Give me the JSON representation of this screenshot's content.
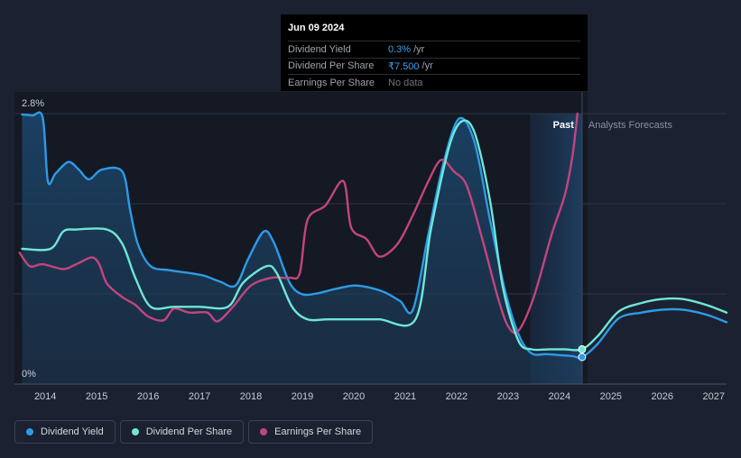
{
  "tooltip": {
    "date": "Jun 09 2024",
    "rows": [
      {
        "label": "Dividend Yield",
        "value": "0.3%",
        "unit": "/yr"
      },
      {
        "label": "Dividend Per Share",
        "value": "₹7.500",
        "unit": "/yr"
      },
      {
        "label": "Earnings Per Share",
        "value": "No data"
      }
    ]
  },
  "regions": {
    "past": "Past",
    "forecast": "Analysts Forecasts"
  },
  "legend": [
    {
      "label": "Dividend Yield",
      "color": "#2c9be6"
    },
    {
      "label": "Dividend Per Share",
      "color": "#6fe6d6"
    },
    {
      "label": "Earnings Per Share",
      "color": "#c2457d"
    }
  ],
  "chart_data": {
    "type": "line",
    "title": "",
    "xlabel": "",
    "ylabel": "",
    "y_tick_labels": [
      "2.8%",
      "0%"
    ],
    "ylim": [
      0,
      2.8
    ],
    "xlim": [
      2013.4,
      2027.25
    ],
    "x_ticks": [
      2014,
      2015,
      2016,
      2017,
      2018,
      2019,
      2020,
      2021,
      2022,
      2023,
      2024,
      2025,
      2026,
      2027
    ],
    "past_end": 2024.44,
    "forecast_band_start": 2023.43,
    "highlight_x": 2024.44,
    "grid": true,
    "legend_position": "bottom-left",
    "series": [
      {
        "name": "Dividend Yield",
        "color": "#2c9be6",
        "area": true,
        "points": [
          [
            2013.55,
            2.79
          ],
          [
            2013.75,
            2.78
          ],
          [
            2013.95,
            2.76
          ],
          [
            2014.05,
            2.1
          ],
          [
            2014.2,
            2.18
          ],
          [
            2014.45,
            2.3
          ],
          [
            2014.65,
            2.22
          ],
          [
            2014.85,
            2.12
          ],
          [
            2015.1,
            2.22
          ],
          [
            2015.5,
            2.2
          ],
          [
            2015.65,
            1.8
          ],
          [
            2015.8,
            1.45
          ],
          [
            2016.05,
            1.22
          ],
          [
            2016.4,
            1.18
          ],
          [
            2016.8,
            1.15
          ],
          [
            2017.1,
            1.12
          ],
          [
            2017.4,
            1.06
          ],
          [
            2017.7,
            1.02
          ],
          [
            2017.95,
            1.3
          ],
          [
            2018.25,
            1.58
          ],
          [
            2018.45,
            1.46
          ],
          [
            2018.75,
            1.05
          ],
          [
            2019.0,
            0.93
          ],
          [
            2019.3,
            0.94
          ],
          [
            2019.6,
            0.98
          ],
          [
            2020.0,
            1.02
          ],
          [
            2020.3,
            1.0
          ],
          [
            2020.6,
            0.95
          ],
          [
            2020.9,
            0.86
          ],
          [
            2021.15,
            0.77
          ],
          [
            2021.45,
            1.55
          ],
          [
            2021.75,
            2.3
          ],
          [
            2022.05,
            2.75
          ],
          [
            2022.35,
            2.5
          ],
          [
            2022.65,
            1.7
          ],
          [
            2022.95,
            0.95
          ],
          [
            2023.2,
            0.52
          ],
          [
            2023.45,
            0.32
          ],
          [
            2023.75,
            0.31
          ],
          [
            2024.0,
            0.3
          ],
          [
            2024.25,
            0.29
          ],
          [
            2024.44,
            0.28
          ],
          [
            2024.75,
            0.42
          ],
          [
            2025.15,
            0.68
          ],
          [
            2025.6,
            0.74
          ],
          [
            2026.0,
            0.77
          ],
          [
            2026.4,
            0.77
          ],
          [
            2026.85,
            0.72
          ],
          [
            2027.25,
            0.64
          ]
        ]
      },
      {
        "name": "Dividend Per Share",
        "color": "#6fe6d6",
        "area": false,
        "points": [
          [
            2013.55,
            1.4
          ],
          [
            2014.1,
            1.4
          ],
          [
            2014.35,
            1.58
          ],
          [
            2014.6,
            1.6
          ],
          [
            2015.2,
            1.6
          ],
          [
            2015.5,
            1.45
          ],
          [
            2015.75,
            1.1
          ],
          [
            2016.05,
            0.8
          ],
          [
            2016.5,
            0.8
          ],
          [
            2017.0,
            0.8
          ],
          [
            2017.55,
            0.8
          ],
          [
            2017.85,
            1.05
          ],
          [
            2018.3,
            1.22
          ],
          [
            2018.5,
            1.15
          ],
          [
            2018.8,
            0.8
          ],
          [
            2019.1,
            0.67
          ],
          [
            2019.5,
            0.67
          ],
          [
            2020.0,
            0.67
          ],
          [
            2020.5,
            0.67
          ],
          [
            2021.2,
            0.67
          ],
          [
            2021.5,
            1.6
          ],
          [
            2021.85,
            2.45
          ],
          [
            2022.1,
            2.72
          ],
          [
            2022.35,
            2.6
          ],
          [
            2022.65,
            1.9
          ],
          [
            2022.9,
            1.0
          ],
          [
            2023.2,
            0.45
          ],
          [
            2023.45,
            0.36
          ],
          [
            2023.8,
            0.36
          ],
          [
            2024.1,
            0.36
          ],
          [
            2024.44,
            0.36
          ],
          [
            2024.75,
            0.5
          ],
          [
            2025.15,
            0.75
          ],
          [
            2025.6,
            0.84
          ],
          [
            2026.0,
            0.88
          ],
          [
            2026.4,
            0.88
          ],
          [
            2026.85,
            0.82
          ],
          [
            2027.25,
            0.74
          ]
        ]
      },
      {
        "name": "Earnings Per Share",
        "color": "#c2457d",
        "area": false,
        "points": [
          [
            2013.5,
            1.36
          ],
          [
            2013.7,
            1.22
          ],
          [
            2013.95,
            1.24
          ],
          [
            2014.35,
            1.19
          ],
          [
            2014.6,
            1.24
          ],
          [
            2014.9,
            1.31
          ],
          [
            2015.05,
            1.24
          ],
          [
            2015.2,
            1.04
          ],
          [
            2015.5,
            0.9
          ],
          [
            2015.75,
            0.82
          ],
          [
            2016.0,
            0.7
          ],
          [
            2016.3,
            0.66
          ],
          [
            2016.5,
            0.78
          ],
          [
            2016.8,
            0.74
          ],
          [
            2017.15,
            0.74
          ],
          [
            2017.35,
            0.65
          ],
          [
            2017.65,
            0.8
          ],
          [
            2018.0,
            1.02
          ],
          [
            2018.4,
            1.1
          ],
          [
            2018.75,
            1.1
          ],
          [
            2018.95,
            1.15
          ],
          [
            2019.1,
            1.7
          ],
          [
            2019.45,
            1.85
          ],
          [
            2019.8,
            2.1
          ],
          [
            2019.95,
            1.62
          ],
          [
            2020.25,
            1.5
          ],
          [
            2020.5,
            1.32
          ],
          [
            2020.85,
            1.45
          ],
          [
            2021.15,
            1.75
          ],
          [
            2021.45,
            2.1
          ],
          [
            2021.7,
            2.32
          ],
          [
            2021.95,
            2.2
          ],
          [
            2022.2,
            2.05
          ],
          [
            2022.5,
            1.5
          ],
          [
            2022.8,
            0.9
          ],
          [
            2023.0,
            0.6
          ],
          [
            2023.2,
            0.55
          ],
          [
            2023.5,
            0.9
          ],
          [
            2023.85,
            1.55
          ],
          [
            2024.1,
            1.95
          ],
          [
            2024.25,
            2.35
          ],
          [
            2024.35,
            2.8
          ]
        ]
      }
    ]
  }
}
